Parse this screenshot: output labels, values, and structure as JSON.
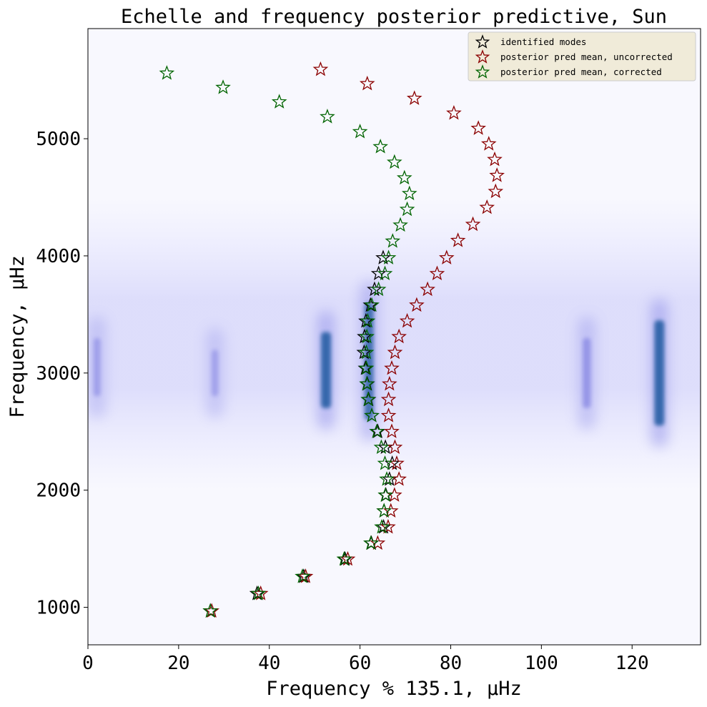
{
  "chart_data": {
    "type": "scatter",
    "title": "Echelle and frequency posterior predictive, Sun",
    "xlabel": "Frequency % 135.1, μHz",
    "ylabel": "Frequency, μHz",
    "xlim": [
      0,
      135.1
    ],
    "ylim": [
      680,
      5940
    ],
    "xticks": [
      "0",
      "20",
      "40",
      "60",
      "80",
      "100",
      "120"
    ],
    "yticks": [
      "1000",
      "2000",
      "3000",
      "4000",
      "5000"
    ],
    "grid": false,
    "legend_position": "top-right",
    "background": {
      "type": "echelle-power-heatmap",
      "colormap": "white-blue-darkblue",
      "ridges": [
        {
          "x_center": 62,
          "y_range": [
            2600,
            3600
          ],
          "strength": 0.8
        },
        {
          "x_center": 52.5,
          "y_range": [
            2700,
            3350
          ],
          "strength": 1.0
        },
        {
          "x_center": 126,
          "y_range": [
            2550,
            3450
          ],
          "strength": 1.0
        },
        {
          "x_center": 110,
          "y_range": [
            2700,
            3300
          ],
          "strength": 0.5
        },
        {
          "x_center": 28,
          "y_range": [
            2800,
            3200
          ],
          "strength": 0.25
        },
        {
          "x_center": 2,
          "y_range": [
            2800,
            3300
          ],
          "strength": 0.3
        }
      ]
    },
    "series": [
      {
        "name": "identified modes",
        "color": "#000000",
        "marker": "star",
        "points": [
          [
            27.0,
            968
          ],
          [
            37.3,
            1117
          ],
          [
            47.6,
            1263
          ],
          [
            56.7,
            1411
          ],
          [
            62.5,
            1547
          ],
          [
            65.2,
            1685
          ],
          [
            65.3,
            1822
          ],
          [
            65.7,
            1957
          ],
          [
            66.5,
            2093
          ],
          [
            67.1,
            2228
          ],
          [
            65.6,
            2365
          ],
          [
            63.9,
            2500
          ],
          [
            62.6,
            2636
          ],
          [
            61.9,
            2773
          ],
          [
            61.6,
            2906
          ],
          [
            61.2,
            3040
          ],
          [
            60.9,
            3175
          ],
          [
            61.0,
            3310
          ],
          [
            61.3,
            3443
          ],
          [
            62.3,
            3579
          ],
          [
            63.2,
            3713
          ],
          [
            64.1,
            3848
          ],
          [
            65.1,
            3983
          ]
        ]
      },
      {
        "name": "posterior pred mean, uncorrected",
        "color": "#8b0000",
        "marker": "star",
        "points": [
          [
            27.3,
            968
          ],
          [
            38.1,
            1117
          ],
          [
            48.0,
            1263
          ],
          [
            57.3,
            1411
          ],
          [
            63.9,
            1547
          ],
          [
            66.2,
            1685
          ],
          [
            66.8,
            1822
          ],
          [
            67.6,
            1957
          ],
          [
            68.6,
            2093
          ],
          [
            68.1,
            2228
          ],
          [
            67.7,
            2365
          ],
          [
            67.0,
            2500
          ],
          [
            66.3,
            2636
          ],
          [
            66.3,
            2773
          ],
          [
            66.5,
            2906
          ],
          [
            67.0,
            3040
          ],
          [
            67.7,
            3175
          ],
          [
            68.6,
            3310
          ],
          [
            70.4,
            3443
          ],
          [
            72.5,
            3579
          ],
          [
            74.9,
            3713
          ],
          [
            77.0,
            3848
          ],
          [
            79.1,
            3983
          ],
          [
            81.6,
            4131
          ],
          [
            84.9,
            4268
          ],
          [
            88.0,
            4413
          ],
          [
            89.9,
            4549
          ],
          [
            90.2,
            4686
          ],
          [
            89.7,
            4822
          ],
          [
            88.4,
            4955
          ],
          [
            86.1,
            5088
          ],
          [
            80.7,
            5218
          ],
          [
            72.0,
            5344
          ],
          [
            61.6,
            5469
          ],
          [
            51.3,
            5591
          ]
        ]
      },
      {
        "name": "posterior pred mean, corrected",
        "color": "#006400",
        "marker": "star",
        "points": [
          [
            27.0,
            968
          ],
          [
            37.6,
            1117
          ],
          [
            47.3,
            1263
          ],
          [
            56.5,
            1411
          ],
          [
            62.4,
            1547
          ],
          [
            64.8,
            1685
          ],
          [
            65.3,
            1822
          ],
          [
            65.6,
            1957
          ],
          [
            65.9,
            2093
          ],
          [
            65.5,
            2228
          ],
          [
            64.7,
            2365
          ],
          [
            63.7,
            2500
          ],
          [
            62.6,
            2636
          ],
          [
            61.8,
            2773
          ],
          [
            61.5,
            2906
          ],
          [
            61.4,
            3040
          ],
          [
            61.4,
            3175
          ],
          [
            61.5,
            3310
          ],
          [
            61.7,
            3443
          ],
          [
            62.6,
            3579
          ],
          [
            64.1,
            3713
          ],
          [
            65.5,
            3848
          ],
          [
            66.3,
            3983
          ],
          [
            67.2,
            4125
          ],
          [
            68.9,
            4262
          ],
          [
            70.4,
            4396
          ],
          [
            70.9,
            4531
          ],
          [
            69.8,
            4665
          ],
          [
            67.6,
            4799
          ],
          [
            64.5,
            4931
          ],
          [
            60.0,
            5059
          ],
          [
            52.8,
            5187
          ],
          [
            42.2,
            5314
          ],
          [
            29.8,
            5437
          ],
          [
            17.4,
            5559
          ]
        ]
      }
    ]
  }
}
